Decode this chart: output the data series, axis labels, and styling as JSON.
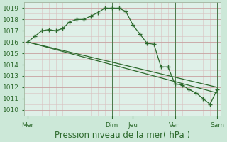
{
  "background_color": "#cce8d8",
  "plot_bg_color": "#dff0e8",
  "grid_color_major": "#c8a0a0",
  "grid_color_minor": "#d8c0c0",
  "line_color": "#2d6a2d",
  "marker_color": "#2d6a2d",
  "ylabel_ticks": [
    1010,
    1011,
    1012,
    1013,
    1014,
    1015,
    1016,
    1017,
    1018,
    1019
  ],
  "ylim": [
    1009.5,
    1019.5
  ],
  "xlabel": "Pression niveau de la mer( hPa )",
  "xlabel_fontsize": 8.5,
  "xtick_labels": [
    "Mer",
    "Dim",
    "Jeu",
    "Ven",
    "Sam"
  ],
  "xtick_positions": [
    0,
    12,
    15,
    21,
    27
  ],
  "n_points": 28,
  "line1_x": [
    0,
    1,
    2,
    3,
    4,
    5,
    6,
    7,
    8,
    9,
    10,
    11,
    12,
    13,
    14,
    15,
    16,
    17,
    18,
    19,
    20,
    21,
    22,
    23,
    24,
    25,
    26,
    27
  ],
  "line1": [
    1016.0,
    1016.5,
    1017.0,
    1017.1,
    1017.0,
    1017.2,
    1017.8,
    1018.0,
    1018.0,
    1018.3,
    1018.6,
    1019.0,
    1019.0,
    1019.0,
    1018.7,
    1017.5,
    1016.7,
    1015.9,
    1015.8,
    1013.8,
    1013.8,
    1012.3,
    1012.2,
    1011.8,
    1011.5,
    1011.0,
    1010.5,
    1011.8
  ],
  "line2_x": [
    0,
    27
  ],
  "line2": [
    1016.0,
    1012.0
  ],
  "line3_x": [
    0,
    27
  ],
  "line3": [
    1016.0,
    1011.5
  ],
  "vline_positions": [
    0,
    12,
    15,
    21,
    27
  ]
}
